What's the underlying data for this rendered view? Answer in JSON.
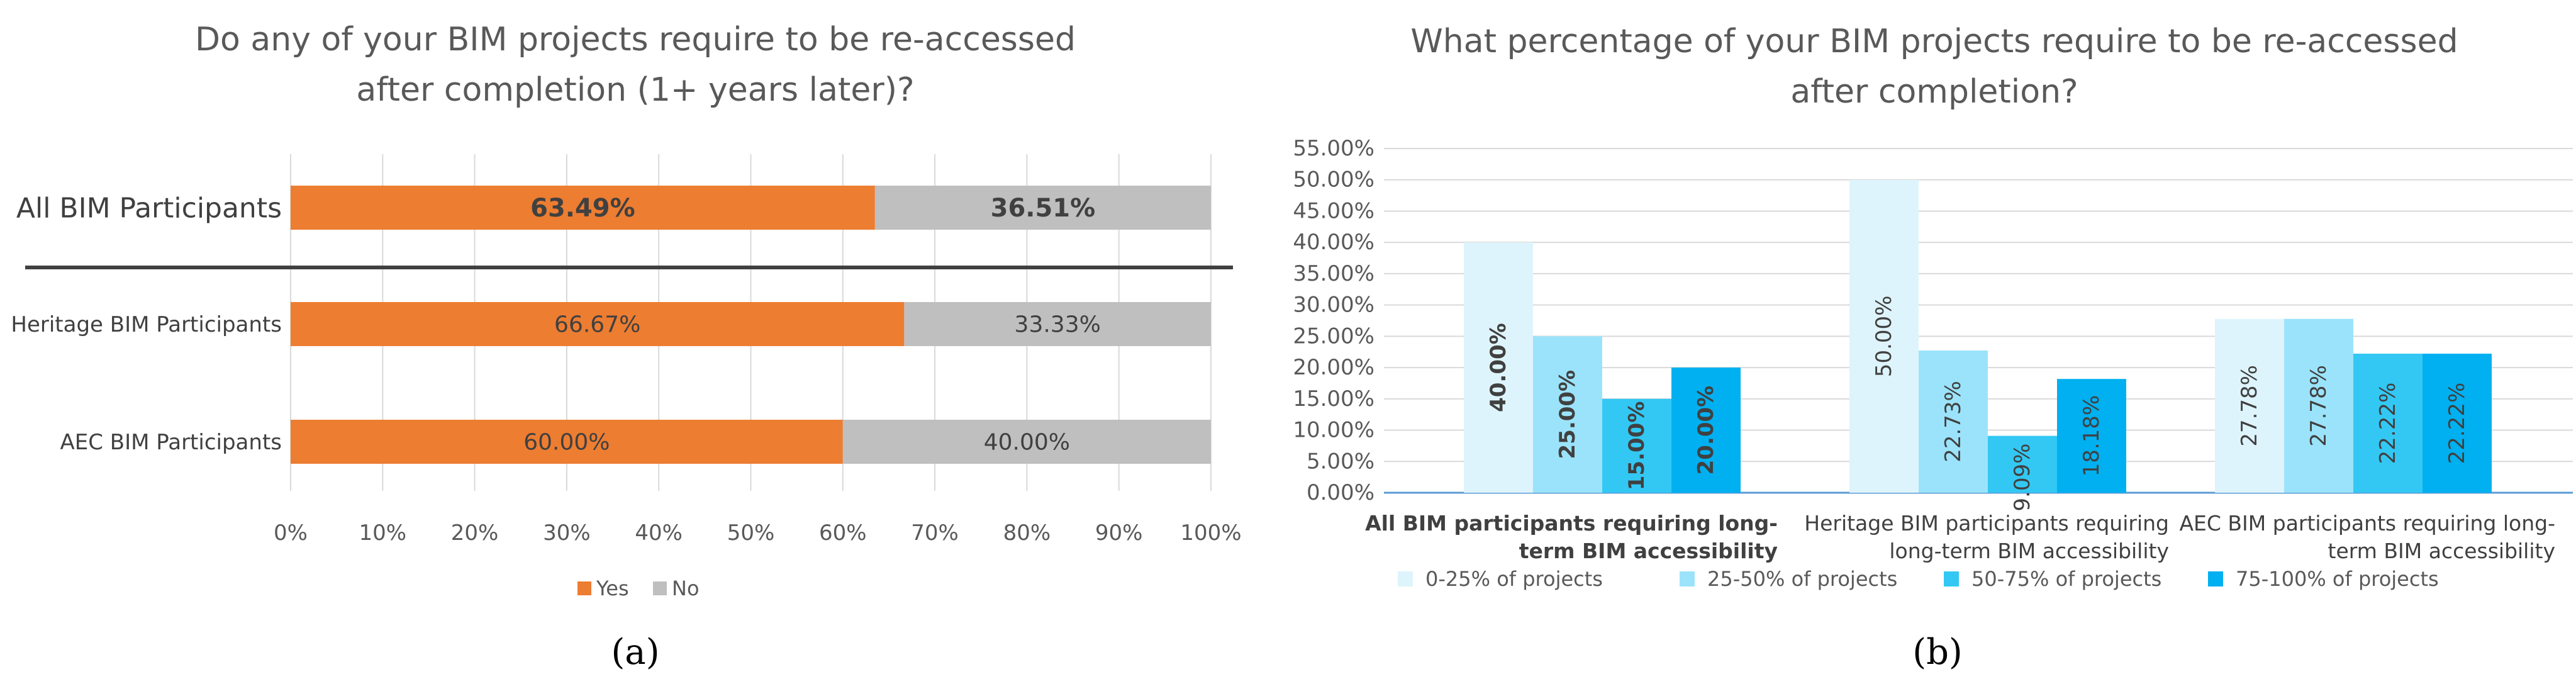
{
  "chart_data": [
    {
      "type": "bar",
      "orientation": "horizontal-stacked-percent",
      "panel_label": "(a)",
      "title": [
        "Do any of your BIM projects require to be re-accessed",
        "after completion (1+ years later)?"
      ],
      "categories": [
        "All BIM Participants",
        "Heritage BIM Participants",
        "AEC BIM Participants"
      ],
      "series": [
        {
          "name": "Yes",
          "color": "#ED7D31",
          "values": [
            63.49,
            66.67,
            60.0
          ],
          "labels": [
            "63.49%",
            "66.67%",
            "60.00%"
          ]
        },
        {
          "name": "No",
          "color": "#BFBFBF",
          "values": [
            36.51,
            33.33,
            40.0
          ],
          "labels": [
            "36.51%",
            "33.33%",
            "40.00%"
          ]
        }
      ],
      "xlim": [
        0,
        100
      ],
      "xticks": [
        "0%",
        "10%",
        "20%",
        "30%",
        "40%",
        "50%",
        "60%",
        "70%",
        "80%",
        "90%",
        "100%"
      ],
      "legend": "bottom",
      "grid": true
    },
    {
      "type": "bar",
      "orientation": "vertical-clustered",
      "panel_label": "(b)",
      "title": [
        "What percentage of your BIM projects require to be re-accessed",
        "after completion?"
      ],
      "categories": [
        [
          "All BIM participants requiring long-",
          "term BIM accessibility"
        ],
        [
          "Heritage BIM participants requiring",
          "long-term BIM accessibility"
        ],
        [
          "AEC BIM participants requiring long-",
          "term BIM accessibility"
        ]
      ],
      "series": [
        {
          "name": "0-25% of projects",
          "color": "#DEF4FC",
          "values": [
            40.0,
            50.0,
            27.78
          ],
          "labels": [
            "40.00%",
            "50.00%",
            "27.78%"
          ]
        },
        {
          "name": "25-50% of projects",
          "color": "#9BE3FA",
          "values": [
            25.0,
            22.73,
            27.78
          ],
          "labels": [
            "25.00%",
            "22.73%",
            "27.78%"
          ]
        },
        {
          "name": "50-75% of projects",
          "color": "#33C8F4",
          "values": [
            15.0,
            9.09,
            22.22
          ],
          "labels": [
            "15.00%",
            "9.09%",
            "22.22%"
          ]
        },
        {
          "name": "75-100% of projects",
          "color": "#00B0F0",
          "values": [
            20.0,
            18.18,
            22.22
          ],
          "labels": [
            "20.00%",
            "18.18%",
            "22.22%"
          ]
        }
      ],
      "ylim": [
        0,
        55
      ],
      "yticks": [
        "0.00%",
        "5.00%",
        "10.00%",
        "15.00%",
        "20.00%",
        "25.00%",
        "30.00%",
        "35.00%",
        "40.00%",
        "45.00%",
        "50.00%",
        "55.00%"
      ],
      "legend": "bottom",
      "grid": true
    }
  ]
}
